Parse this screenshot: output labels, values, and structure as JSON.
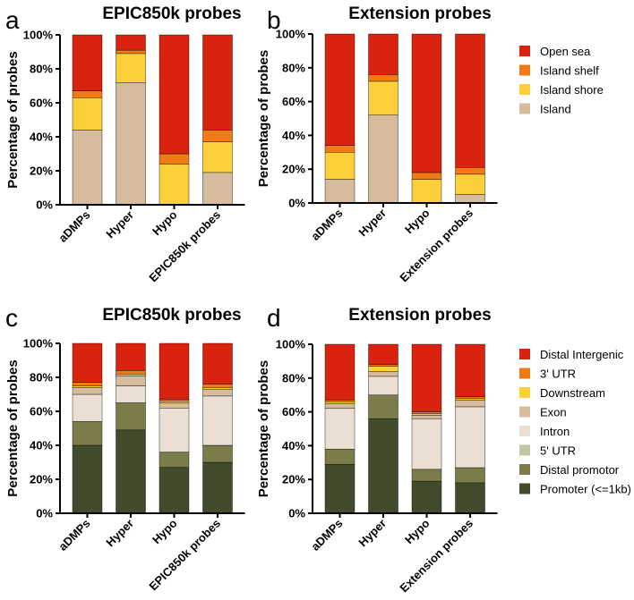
{
  "chart_data": [
    {
      "type": "bar",
      "stacked": true,
      "panel": "a",
      "title": "EPIC850k probes",
      "xlabel": "",
      "ylabel": "Percentage of probes",
      "ylim": [
        0,
        100
      ],
      "yticks": [
        "0%",
        "20%",
        "40%",
        "60%",
        "80%",
        "100%"
      ],
      "categories": [
        "aDMPs",
        "Hyper",
        "Hypo",
        "EPIC850k probes"
      ],
      "series": [
        {
          "name": "Island",
          "color": "#d6bc9c",
          "values": [
            44,
            72,
            0,
            19
          ]
        },
        {
          "name": "Island shore",
          "color": "#fdd03a",
          "values": [
            19,
            17,
            24,
            18
          ]
        },
        {
          "name": "Island shelf",
          "color": "#f07b14",
          "values": [
            4,
            2,
            6,
            7
          ]
        },
        {
          "name": "Open sea",
          "color": "#d9230f",
          "values": [
            33,
            9,
            70,
            56
          ]
        }
      ]
    },
    {
      "type": "bar",
      "stacked": true,
      "panel": "b",
      "title": "Extension probes",
      "xlabel": "",
      "ylabel": "Percentage of probes",
      "ylim": [
        0,
        100
      ],
      "yticks": [
        "0%",
        "20%",
        "40%",
        "60%",
        "80%",
        "100%"
      ],
      "categories": [
        "aDMPs",
        "Hyper",
        "Hypo",
        "Extension probes"
      ],
      "series": [
        {
          "name": "Island",
          "color": "#d6bc9c",
          "values": [
            14,
            52,
            0,
            5
          ]
        },
        {
          "name": "Island shore",
          "color": "#fdd03a",
          "values": [
            16,
            20,
            14,
            12
          ]
        },
        {
          "name": "Island shelf",
          "color": "#f07b14",
          "values": [
            4,
            4,
            4,
            4
          ]
        },
        {
          "name": "Open sea",
          "color": "#d9230f",
          "values": [
            66,
            24,
            82,
            79
          ]
        }
      ],
      "legend": [
        "Open sea",
        "Island shelf",
        "Island shore",
        "Island"
      ]
    },
    {
      "type": "bar",
      "stacked": true,
      "panel": "c",
      "title": "EPIC850k probes",
      "xlabel": "",
      "ylabel": "Percentage of probes",
      "ylim": [
        0,
        100
      ],
      "yticks": [
        "0%",
        "20%",
        "40%",
        "60%",
        "80%",
        "100%"
      ],
      "categories": [
        "aDMPs",
        "Hyper",
        "Hypo",
        "EPIC850k probes"
      ],
      "series": [
        {
          "name": "Promoter (<=1kb)",
          "color": "#434b2d",
          "values": [
            40,
            49,
            27,
            30
          ]
        },
        {
          "name": "Distal promotor",
          "color": "#7c7c4b",
          "values": [
            14,
            16,
            9,
            10
          ]
        },
        {
          "name": "5' UTR",
          "color": "#c3c6a4",
          "values": [
            0,
            0,
            0,
            0
          ]
        },
        {
          "name": "Intron",
          "color": "#ebdfd3",
          "values": [
            16,
            10,
            26,
            29
          ]
        },
        {
          "name": "Exon",
          "color": "#d6bc9c",
          "values": [
            4,
            6,
            3,
            4
          ]
        },
        {
          "name": "Downstream",
          "color": "#fdd03a",
          "values": [
            1,
            1,
            1,
            1
          ]
        },
        {
          "name": "3' UTR",
          "color": "#f07b14",
          "values": [
            2,
            2,
            1,
            2
          ]
        },
        {
          "name": "Distal Intergenic",
          "color": "#d9230f",
          "values": [
            23,
            16,
            33,
            24
          ]
        }
      ]
    },
    {
      "type": "bar",
      "stacked": true,
      "panel": "d",
      "title": "Extension probes",
      "xlabel": "",
      "ylabel": "Percentage of probes",
      "ylim": [
        0,
        100
      ],
      "yticks": [
        "0%",
        "20%",
        "40%",
        "60%",
        "80%",
        "100%"
      ],
      "categories": [
        "aDMPs",
        "Hyper",
        "Hypo",
        "Extension probes"
      ],
      "series": [
        {
          "name": "Promoter (<=1kb)",
          "color": "#434b2d",
          "values": [
            29,
            56,
            19,
            18
          ]
        },
        {
          "name": "Distal promotor",
          "color": "#7c7c4b",
          "values": [
            9,
            14,
            7,
            9
          ]
        },
        {
          "name": "5' UTR",
          "color": "#c3c6a4",
          "values": [
            0,
            0,
            0,
            0
          ]
        },
        {
          "name": "Intron",
          "color": "#ebdfd3",
          "values": [
            24,
            11,
            30,
            36
          ]
        },
        {
          "name": "Exon",
          "color": "#d6bc9c",
          "values": [
            3,
            3,
            2,
            4
          ]
        },
        {
          "name": "Downstream",
          "color": "#fdd03a",
          "values": [
            1,
            3,
            1,
            1
          ]
        },
        {
          "name": "3' UTR",
          "color": "#f07b14",
          "values": [
            1,
            1,
            1,
            1
          ]
        },
        {
          "name": "Distal Intergenic",
          "color": "#d9230f",
          "values": [
            33,
            12,
            40,
            31
          ]
        }
      ],
      "legend": [
        "Distal Intergenic",
        "3' UTR",
        "Downstream",
        "Exon",
        "Intron",
        "5' UTR",
        "Distal promotor",
        "Promoter (<=1kb)"
      ]
    }
  ]
}
